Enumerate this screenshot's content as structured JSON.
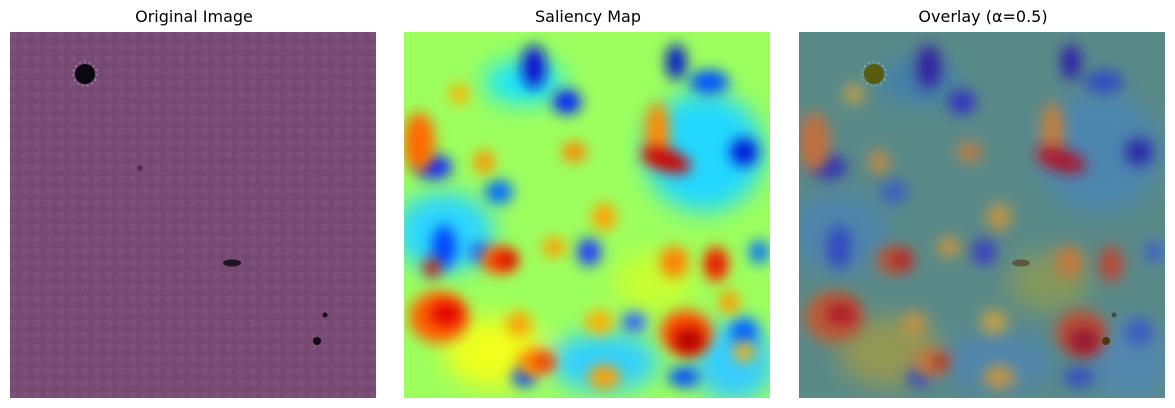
{
  "panels": [
    {
      "title": "Original Image",
      "image": "tissue-texture-purple"
    },
    {
      "title": "Saliency Map",
      "image": "saliency-heatmap-jet"
    },
    {
      "title": "Overlay (α=0.5)",
      "image": "saliency-overlay-jet"
    }
  ],
  "colors": {
    "tissue_base": "#6e3b68",
    "tissue_light": "#7a5a86",
    "jet_low": "#0a2aff",
    "jet_mid": "#00ffff",
    "jet_high": "#ff0000"
  }
}
